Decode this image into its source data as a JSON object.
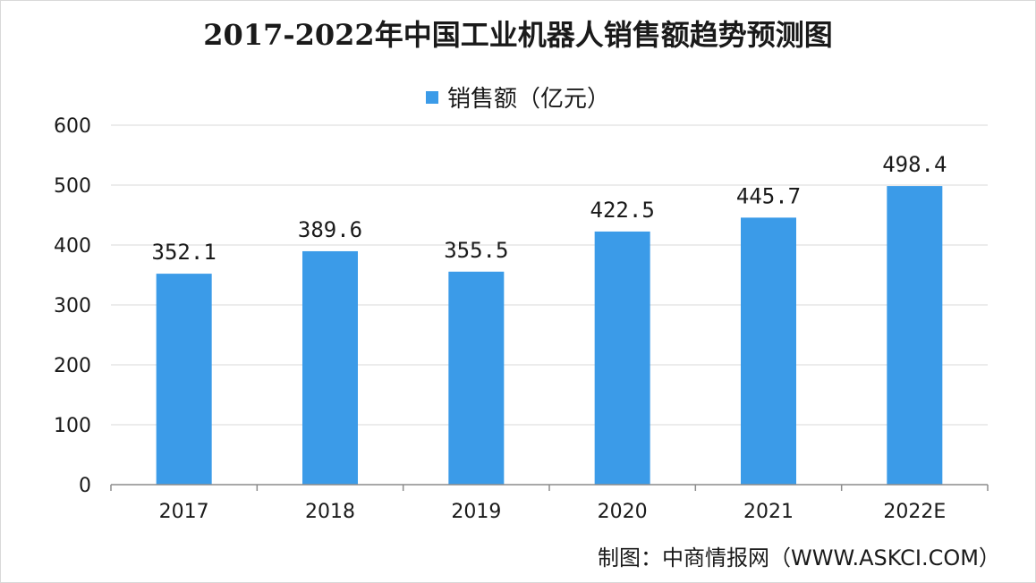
{
  "title": "2017-2022年中国工业机器人销售额趋势预测图",
  "credit": "制图：中商情报网（WWW.ASKCI.COM）",
  "colors": {
    "bar": "#3b9be8",
    "grid": "#d9d9d9",
    "axis": "#8c8c8c"
  },
  "chart_data": {
    "type": "bar",
    "title": "2017-2022年中国工业机器人销售额趋势预测图",
    "categories": [
      "2017",
      "2018",
      "2019",
      "2020",
      "2021",
      "2022E"
    ],
    "series": [
      {
        "name": "销售额（亿元）",
        "values": [
          352.1,
          389.6,
          355.5,
          422.5,
          445.7,
          498.4
        ]
      }
    ],
    "data_labels": [
      "352.1",
      "389.6",
      "355.5",
      "422.5",
      "445.7",
      "498.4"
    ],
    "ylim": [
      0,
      600
    ],
    "yticks": [
      "0",
      "100",
      "200",
      "300",
      "400",
      "500",
      "600"
    ],
    "grid": true,
    "legend_position": "top-center"
  }
}
